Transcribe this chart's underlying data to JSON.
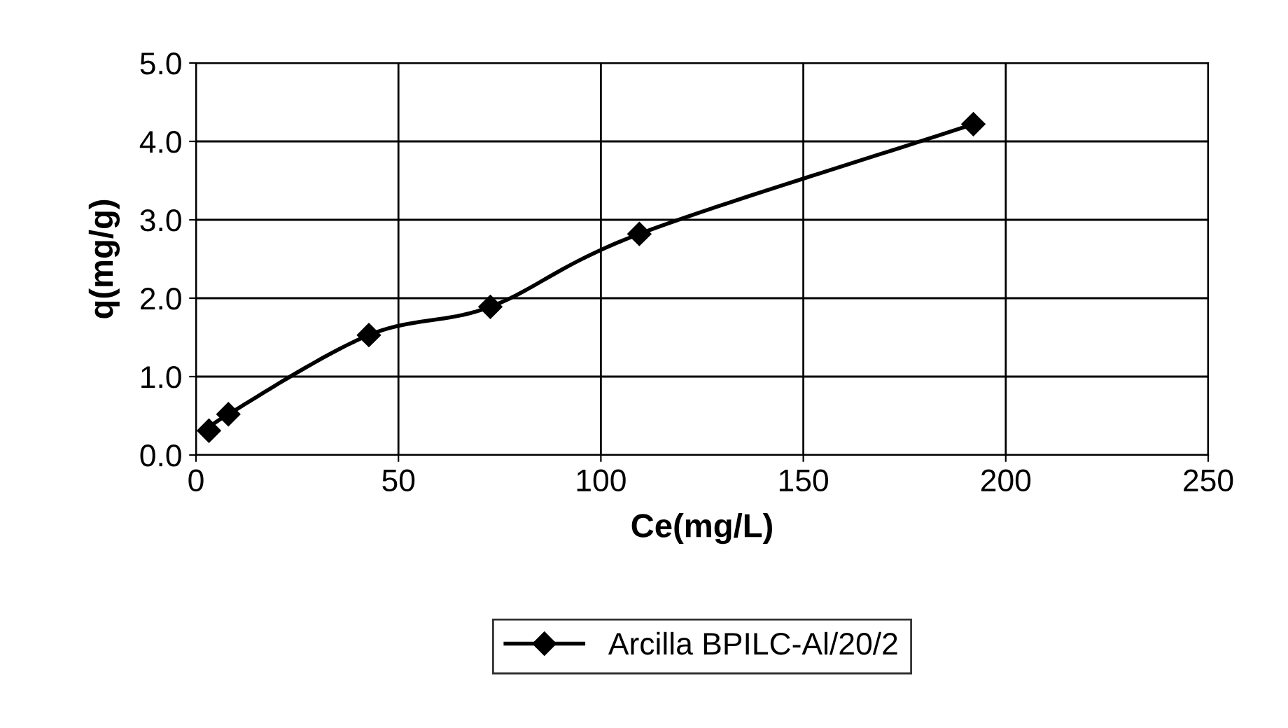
{
  "chart_data": {
    "type": "line",
    "xlabel": "Ce(mg/L)",
    "ylabel": "q(mg/g)",
    "x": [
      3.2,
      8,
      42.7,
      72.7,
      109.5,
      192
    ],
    "series": [
      {
        "name": "Arcilla BPILC-Al/20/2",
        "color": "#000000",
        "values": [
          0.31,
          0.52,
          1.53,
          1.89,
          2.82,
          4.22
        ]
      }
    ],
    "xlim": [
      0,
      250
    ],
    "xticks": [
      0,
      50,
      100,
      150,
      200,
      250
    ],
    "ylim": [
      0,
      5
    ],
    "yticks": [
      {
        "value": 0,
        "label": "0.0"
      },
      {
        "value": 1,
        "label": "1.0"
      },
      {
        "value": 2,
        "label": "2.0"
      },
      {
        "value": 3,
        "label": "3.0"
      },
      {
        "value": 4,
        "label": "4.0"
      },
      {
        "value": 5,
        "label": "5.0"
      }
    ],
    "grid": true,
    "legend": "bottom",
    "marker": "diamond",
    "line_style": "solid"
  }
}
